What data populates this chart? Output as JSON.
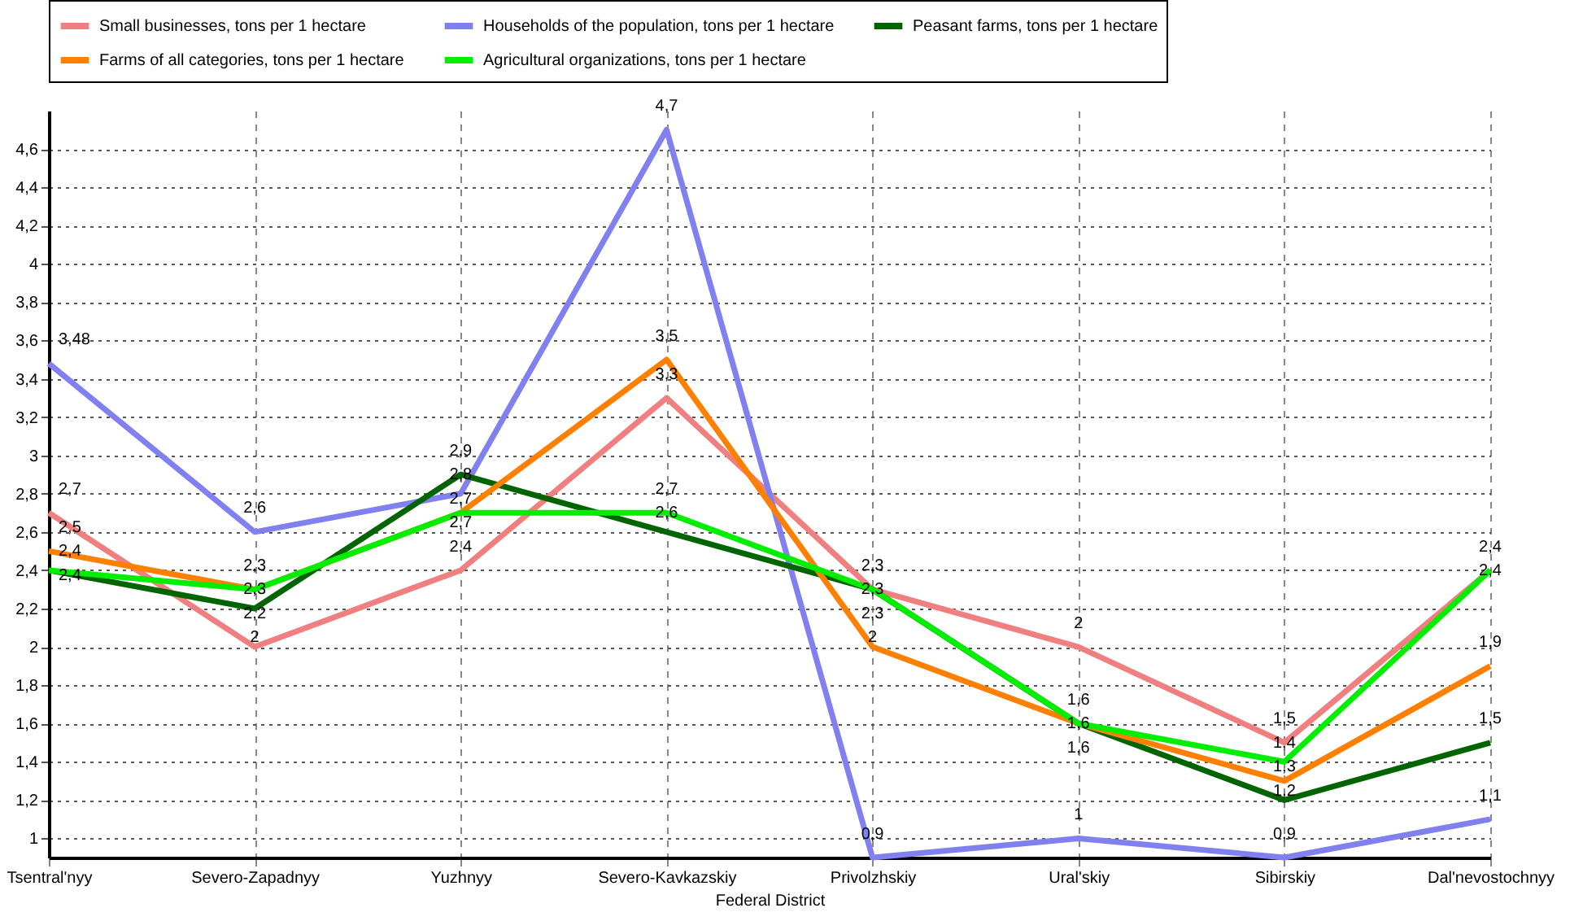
{
  "chart_data": {
    "type": "line",
    "xlabel": "Federal District",
    "categories": [
      "Tsentral'nyy",
      "Severo-Zapadnyy",
      "Yuzhnyy",
      "Severo-Kavkazskiy",
      "Privolzhskiy",
      "Ural'skiy",
      "Sibirskiy",
      "Dal'nevostochnyy"
    ],
    "series": [
      {
        "name": "Small businesses, tons per 1 hectare",
        "color": "#f08080",
        "values": [
          2.7,
          2,
          2.4,
          3.3,
          2.3,
          2,
          1.5,
          2.4
        ],
        "value_labels": [
          "2,7",
          "2",
          "2,4",
          "3,3",
          "2,3",
          "2",
          "1,5",
          "2,4"
        ]
      },
      {
        "name": "Households of the population, tons per 1 hectare",
        "color": "#8080f0",
        "values": [
          3.48,
          2.6,
          2.8,
          4.7,
          0.9,
          1,
          0.9,
          1.1
        ],
        "value_labels": [
          "3,48",
          "2,6",
          "2,8",
          "4,7",
          "0,9",
          "1",
          "0,9",
          "1,1"
        ]
      },
      {
        "name": "Peasant farms, tons per 1 hectare",
        "color": "#006400",
        "values": [
          2.4,
          2.2,
          2.9,
          2.6,
          2.3,
          1.6,
          1.2,
          1.5
        ],
        "value_labels": [
          "2,4",
          "2,2",
          "2,9",
          "2,6",
          "2,3",
          "1,6",
          "1,2",
          "1,5"
        ]
      },
      {
        "name": "Farms of all categories, tons per 1 hectare",
        "color": "#ff8000",
        "values": [
          2.5,
          2.3,
          2.7,
          3.5,
          2,
          1.6,
          1.3,
          1.9
        ],
        "value_labels": [
          "2,5",
          "2,3",
          "2,7",
          "3,5",
          "2",
          "1,6",
          "1,3",
          "1,9"
        ]
      },
      {
        "name": "Agricultural organizations, tons per 1 hectare",
        "color": "#00ee00",
        "values": [
          2.4,
          2.3,
          2.7,
          2.7,
          2.3,
          1.6,
          1.4,
          2.4
        ],
        "value_labels": [
          "2,4",
          "2,3",
          "2,7",
          "2,7",
          "2,3",
          "1,6",
          "1,4",
          "2,4"
        ]
      }
    ],
    "ylim": [
      0.9,
      4.8
    ],
    "yticks": [
      1,
      {
        "value": 1.2,
        "label": "1,2"
      },
      {
        "value": 1.4,
        "label": "1,4"
      },
      {
        "value": 1.6,
        "label": "1,6"
      },
      {
        "value": 1.8,
        "label": "1,8"
      },
      2,
      {
        "value": 2.2,
        "label": "2,2"
      },
      {
        "value": 2.4,
        "label": "2,4"
      },
      {
        "value": 2.6,
        "label": "2,6"
      },
      {
        "value": 2.8,
        "label": "2,8"
      },
      3,
      {
        "value": 3.2,
        "label": "3,2"
      },
      {
        "value": 3.4,
        "label": "3,4"
      },
      {
        "value": 3.6,
        "label": "3,6"
      },
      {
        "value": 3.8,
        "label": "3,8"
      },
      4,
      {
        "value": 4.2,
        "label": "4,2"
      },
      {
        "value": 4.4,
        "label": "4,4"
      },
      {
        "value": 4.6,
        "label": "4,6"
      }
    ],
    "grid": true,
    "legend": "top",
    "marker": "none",
    "line_style": "solid"
  }
}
